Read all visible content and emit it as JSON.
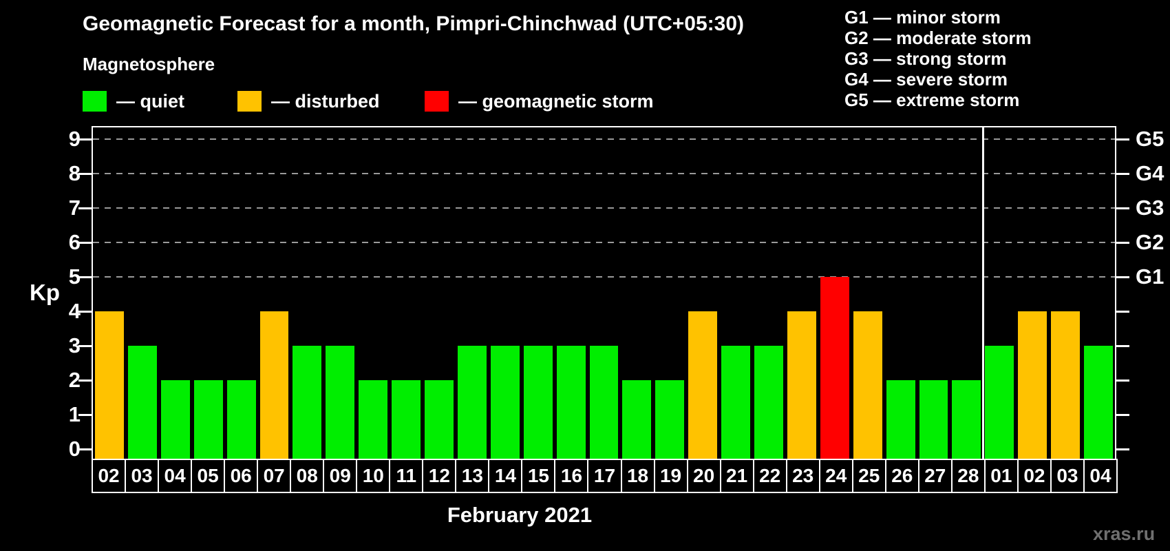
{
  "header": {
    "title": "Geomagnetic Forecast for a month, Pimpri-Chinchwad (UTC+05:30)",
    "subtitle": "Magnetosphere"
  },
  "legend": {
    "items": [
      {
        "name": "quiet",
        "label": "— quiet",
        "color": "#00EE00"
      },
      {
        "name": "disturbed",
        "label": "— disturbed",
        "color": "#FFC200"
      },
      {
        "name": "storm",
        "label": "— geomagnetic storm",
        "color": "#FF0000"
      }
    ]
  },
  "storm_scale_legend": [
    {
      "label": "G1 — minor storm"
    },
    {
      "label": "G2 — moderate storm"
    },
    {
      "label": "G3 — strong storm"
    },
    {
      "label": "G4 — severe storm"
    },
    {
      "label": "G5 — extreme storm"
    }
  ],
  "watermark": "xras.ru",
  "chart_data": {
    "type": "bar",
    "title": "Geomagnetic Forecast for a month, Pimpri-Chinchwad (UTC+05:30)",
    "subtitle": "Magnetosphere",
    "ylabel": "Kp",
    "xlabel": "February 2021",
    "ylim": [
      0,
      9
    ],
    "yticks": [
      0,
      1,
      2,
      3,
      4,
      5,
      6,
      7,
      8,
      9
    ],
    "gridlines_at": [
      5,
      6,
      7,
      8,
      9
    ],
    "grid": "dashed horizontal at Kp 5-9 only",
    "right_axis": [
      {
        "kp": 5,
        "label": "G1"
      },
      {
        "kp": 6,
        "label": "G2"
      },
      {
        "kp": 7,
        "label": "G3"
      },
      {
        "kp": 8,
        "label": "G4"
      },
      {
        "kp": 9,
        "label": "G5"
      }
    ],
    "categories": [
      "02",
      "03",
      "04",
      "05",
      "06",
      "07",
      "08",
      "09",
      "10",
      "11",
      "12",
      "13",
      "14",
      "15",
      "16",
      "17",
      "18",
      "19",
      "20",
      "21",
      "22",
      "23",
      "24",
      "25",
      "26",
      "27",
      "28",
      "01",
      "02",
      "03",
      "04"
    ],
    "values": [
      4,
      3,
      2,
      2,
      2,
      4,
      3,
      3,
      2,
      2,
      2,
      3,
      3,
      3,
      3,
      3,
      2,
      2,
      4,
      3,
      3,
      4,
      5,
      4,
      2,
      2,
      2,
      3,
      4,
      4,
      3
    ],
    "statuses": [
      "disturbed",
      "quiet",
      "quiet",
      "quiet",
      "quiet",
      "disturbed",
      "quiet",
      "quiet",
      "quiet",
      "quiet",
      "quiet",
      "quiet",
      "quiet",
      "quiet",
      "quiet",
      "quiet",
      "quiet",
      "quiet",
      "disturbed",
      "quiet",
      "quiet",
      "disturbed",
      "storm",
      "disturbed",
      "quiet",
      "quiet",
      "quiet",
      "quiet",
      "disturbed",
      "disturbed",
      "quiet"
    ],
    "status_colors": {
      "quiet": "#00EE00",
      "disturbed": "#FFC200",
      "storm": "#FF0000"
    },
    "month_separator_after_index": 26,
    "legend_position": "top-left above plot"
  }
}
